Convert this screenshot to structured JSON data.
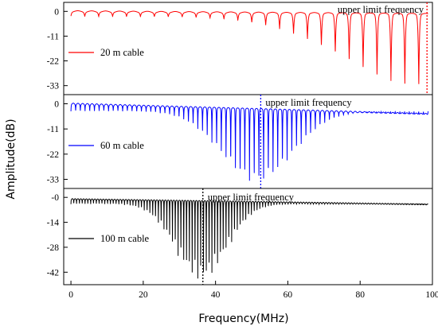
{
  "chart_data": {
    "type": "line",
    "xlabel": "Frequency(MHz)",
    "ylabel": "Amplitude(dB)",
    "xlim": [
      -2,
      100
    ],
    "xticks": [
      0,
      20,
      40,
      60,
      80,
      100
    ],
    "panels": [
      {
        "series": {
          "name": "20 m cable",
          "color": "#ff0000"
        },
        "yticks": [
          0,
          -11,
          -22,
          -33
        ],
        "ylim": [
          -37,
          4
        ],
        "envelope": {
          "base_start": 0,
          "base_end": -1.2,
          "notch_period_mhz": 3.85,
          "notch_phase_mhz": 1.9,
          "notch_center_mhz": 97,
          "notch_spread_mhz": 30,
          "notch_min_db": -2,
          "notch_max_db": -33
        },
        "marker": {
          "label": "upper limit frequency",
          "x": 98.5,
          "color": "#ff0000"
        }
      },
      {
        "series": {
          "name": "60 m cable",
          "color": "#0000ff"
        },
        "yticks": [
          0,
          -11,
          -22,
          -33
        ],
        "ylim": [
          -37,
          4
        ],
        "envelope": {
          "base_start": 0,
          "base_end": -4.5,
          "notch_period_mhz": 1.3,
          "notch_phase_mhz": 0.65,
          "notch_center_mhz": 51.5,
          "notch_spread_mhz": 14,
          "notch_min_db": -3,
          "notch_max_db": -34
        },
        "marker": {
          "label": "upper limit frequency",
          "x": 52.5,
          "color": "#0000ff"
        }
      },
      {
        "series": {
          "name": "100 m cable",
          "color": "#000000"
        },
        "yticks": [
          0,
          -14,
          -28,
          -42
        ],
        "ytick_labels": [
          "-0",
          "-14",
          "-28",
          "-42"
        ],
        "ylim": [
          -49,
          5
        ],
        "envelope": {
          "base_start": -1,
          "base_end": -4,
          "notch_period_mhz": 0.78,
          "notch_phase_mhz": 0.39,
          "notch_center_mhz": 36,
          "notch_spread_mhz": 10,
          "notch_min_db": -3.5,
          "notch_max_db": -47
        },
        "marker": {
          "label": "upper limit frequency",
          "x": 36.5,
          "color": "#000000"
        }
      }
    ]
  }
}
